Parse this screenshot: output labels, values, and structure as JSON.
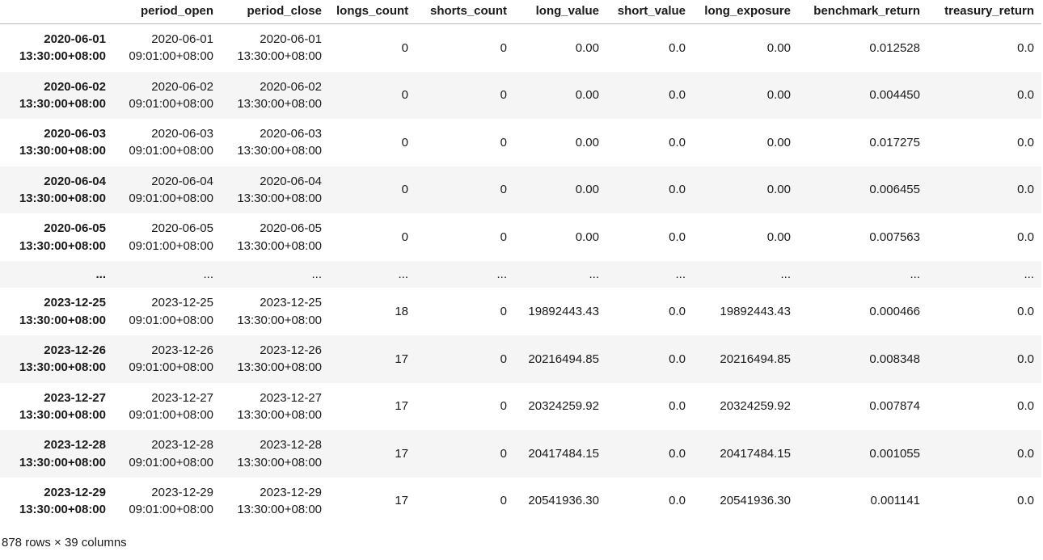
{
  "table": {
    "index_header": "",
    "columns": [
      "period_open",
      "period_close",
      "longs_count",
      "shorts_count",
      "long_value",
      "short_value",
      "long_exposure",
      "benchmark_return",
      "treasury_return"
    ],
    "rows": [
      {
        "index": "2020-06-01\n13:30:00+08:00",
        "cells": [
          "2020-06-01\n09:01:00+08:00",
          "2020-06-01\n13:30:00+08:00",
          "0",
          "0",
          "0.00",
          "0.0",
          "0.00",
          "0.012528",
          "0.0"
        ]
      },
      {
        "index": "2020-06-02\n13:30:00+08:00",
        "cells": [
          "2020-06-02\n09:01:00+08:00",
          "2020-06-02\n13:30:00+08:00",
          "0",
          "0",
          "0.00",
          "0.0",
          "0.00",
          "0.004450",
          "0.0"
        ]
      },
      {
        "index": "2020-06-03\n13:30:00+08:00",
        "cells": [
          "2020-06-03\n09:01:00+08:00",
          "2020-06-03\n13:30:00+08:00",
          "0",
          "0",
          "0.00",
          "0.0",
          "0.00",
          "0.017275",
          "0.0"
        ]
      },
      {
        "index": "2020-06-04\n13:30:00+08:00",
        "cells": [
          "2020-06-04\n09:01:00+08:00",
          "2020-06-04\n13:30:00+08:00",
          "0",
          "0",
          "0.00",
          "0.0",
          "0.00",
          "0.006455",
          "0.0"
        ]
      },
      {
        "index": "2020-06-05\n13:30:00+08:00",
        "cells": [
          "2020-06-05\n09:01:00+08:00",
          "2020-06-05\n13:30:00+08:00",
          "0",
          "0",
          "0.00",
          "0.0",
          "0.00",
          "0.007563",
          "0.0"
        ]
      },
      {
        "index": "...",
        "ellipsis": true,
        "cells": [
          "...",
          "...",
          "...",
          "...",
          "...",
          "...",
          "...",
          "...",
          "..."
        ]
      },
      {
        "index": "2023-12-25\n13:30:00+08:00",
        "cells": [
          "2023-12-25\n09:01:00+08:00",
          "2023-12-25\n13:30:00+08:00",
          "18",
          "0",
          "19892443.43",
          "0.0",
          "19892443.43",
          "0.000466",
          "0.0"
        ]
      },
      {
        "index": "2023-12-26\n13:30:00+08:00",
        "cells": [
          "2023-12-26\n09:01:00+08:00",
          "2023-12-26\n13:30:00+08:00",
          "17",
          "0",
          "20216494.85",
          "0.0",
          "20216494.85",
          "0.008348",
          "0.0"
        ]
      },
      {
        "index": "2023-12-27\n13:30:00+08:00",
        "cells": [
          "2023-12-27\n09:01:00+08:00",
          "2023-12-27\n13:30:00+08:00",
          "17",
          "0",
          "20324259.92",
          "0.0",
          "20324259.92",
          "0.007874",
          "0.0"
        ]
      },
      {
        "index": "2023-12-28\n13:30:00+08:00",
        "cells": [
          "2023-12-28\n09:01:00+08:00",
          "2023-12-28\n13:30:00+08:00",
          "17",
          "0",
          "20417484.15",
          "0.0",
          "20417484.15",
          "0.001055",
          "0.0"
        ]
      },
      {
        "index": "2023-12-29\n13:30:00+08:00",
        "cells": [
          "2023-12-29\n09:01:00+08:00",
          "2023-12-29\n13:30:00+08:00",
          "17",
          "0",
          "20541936.30",
          "0.0",
          "20541936.30",
          "0.001141",
          "0.0"
        ]
      }
    ],
    "footer": "878 rows × 39 columns"
  },
  "colors": {
    "stripe": "#f5f5f5",
    "header_border": "#b8b8b8",
    "text": "#1a1a1a",
    "background": "#ffffff"
  }
}
